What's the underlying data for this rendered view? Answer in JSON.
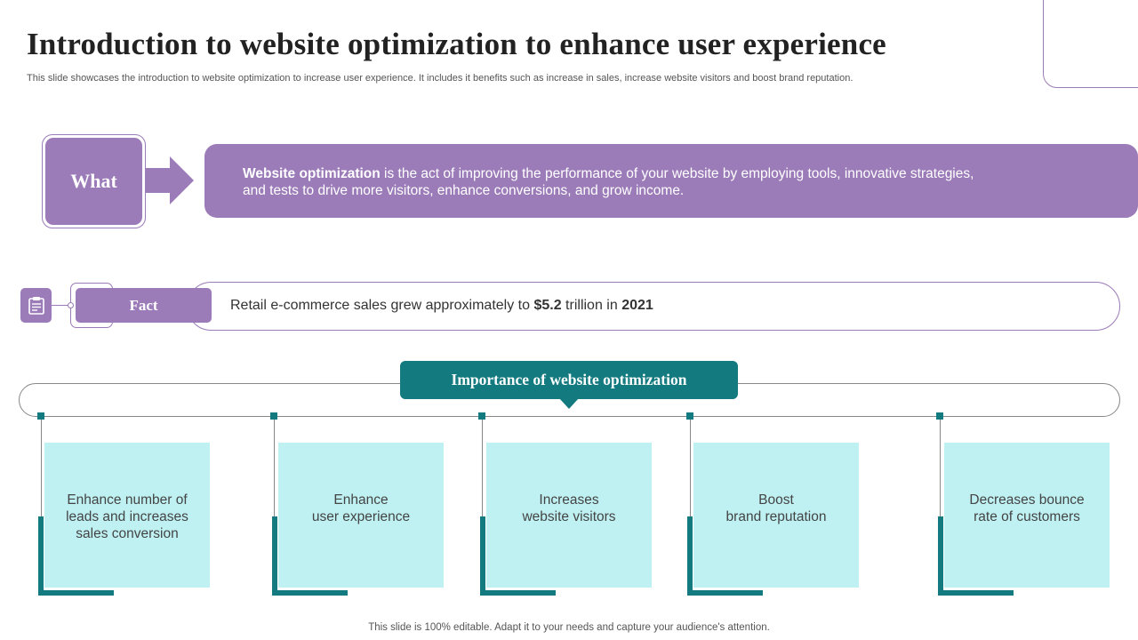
{
  "header": {
    "title": "Introduction to website optimization to enhance user experience",
    "subtitle": "This slide showcases the introduction to website optimization to increase user experience. It includes it benefits such as increase in sales, increase website visitors and boost brand reputation."
  },
  "what": {
    "label": "What",
    "term": "Website optimization",
    "definition_line1": " is the act of improving the performance of your website by employing tools, innovative strategies,",
    "definition_line2": "and tests to drive more visitors, enhance conversions, and grow income."
  },
  "fact": {
    "icon": "report-icon",
    "label": "Fact",
    "text_prefix": "Retail e-commerce sales grew approximately to ",
    "amount": "$5.2",
    "text_middle": " trillion in ",
    "year": "2021"
  },
  "importance": {
    "title": "Importance of website optimization",
    "items": [
      {
        "line1": "Enhance number of",
        "line2": "leads and increases",
        "line3": "sales conversion"
      },
      {
        "line1": "Enhance",
        "line2": "user experience",
        "line3": ""
      },
      {
        "line1": "Increases",
        "line2": "website visitors",
        "line3": ""
      },
      {
        "line1": "Boost",
        "line2": "brand reputation",
        "line3": ""
      },
      {
        "line1": "Decreases bounce",
        "line2": "rate of customers",
        "line3": ""
      }
    ]
  },
  "footer": {
    "note": "This slide is 100% editable. Adapt it to your needs and capture your audience's attention."
  },
  "colors": {
    "purple": "#9b7bb8",
    "teal": "#137a7f",
    "card_bg": "#bff1f3"
  }
}
